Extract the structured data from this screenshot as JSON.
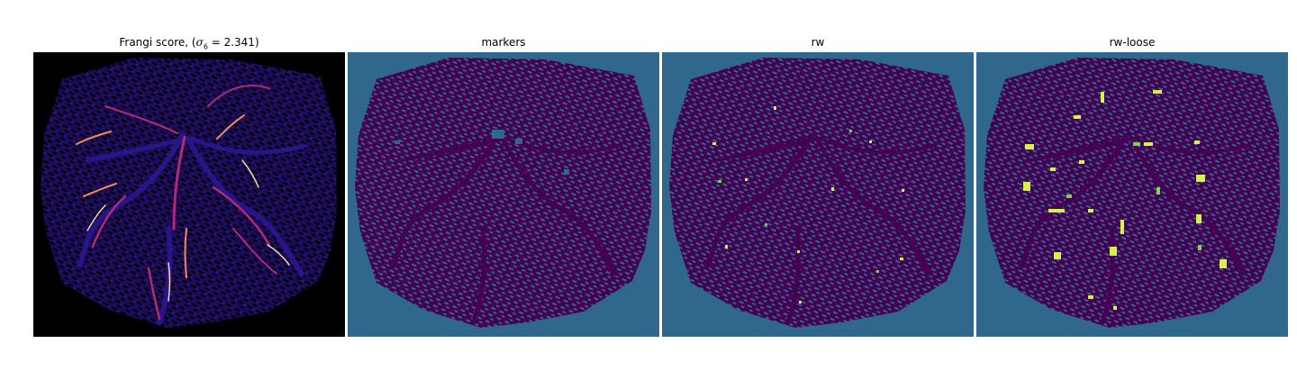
{
  "figure": {
    "panels": [
      {
        "title_prefix": "Frangi score, (",
        "sigma_symbol": "σ",
        "sigma_subscript": "6",
        "title_suffix": " = 2.341)",
        "colormap": "magma"
      },
      {
        "title": "markers",
        "colormap": "viridis"
      },
      {
        "title": "rw",
        "colormap": "viridis"
      },
      {
        "title": "rw-loose",
        "colormap": "viridis"
      }
    ]
  },
  "colors": {
    "background_black": "#000000",
    "background_teal": "#30678d",
    "vessel_dark_purple": "#440154",
    "frangi_blue": "#2a1588",
    "frangi_magenta": "#b02a7c",
    "frangi_orange": "#f58b5c",
    "frangi_light": "#fcd9a7",
    "highlight_yellow": "#d9f04a",
    "highlight_green": "#7fd34e"
  }
}
